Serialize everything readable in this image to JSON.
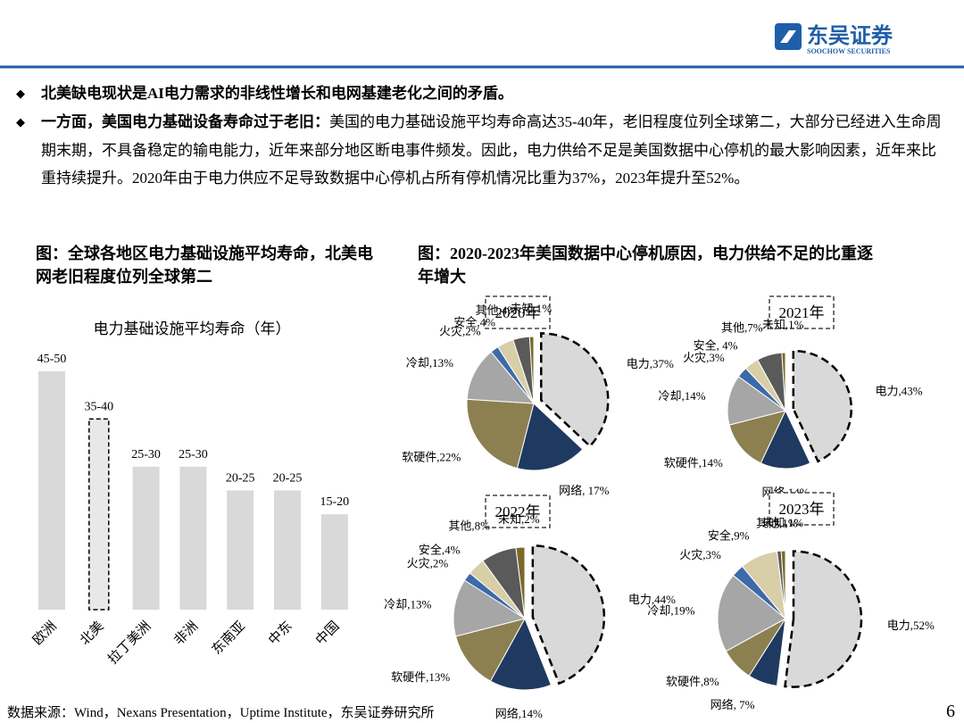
{
  "header": {
    "logo_cn": "东吴证券",
    "logo_en": "SOOCHOW SECURITIES"
  },
  "bullets": [
    {
      "bold": "北美缺电现状是AI电力需求的非线性增长和电网基建老化之间的矛盾。",
      "text": ""
    },
    {
      "bold": "一方面，美国电力基础设备寿命过于老旧：",
      "text": "美国的电力基础设施平均寿命高达35-40年，老旧程度位列全球第二，大部分已经进入生命周期末期，不具备稳定的输电能力，近年来部分地区断电事件频发。因此，电力供给不足是美国数据中心停机的最大影响因素，近年来比重持续提升。2020年由于电力供应不足导致数据中心停机占所有停机情况比重为37%，2023年提升至52%。"
    }
  ],
  "footer": {
    "source": "数据来源：Wind，Nexans Presentation，Uptime Institute，东吴证券研究所",
    "page": "6"
  },
  "chart_data": [
    {
      "type": "bar",
      "title": "图：全球各地区电力基础设施平均寿命，北美电网老旧程度位列全球第二",
      "subtitle": "电力基础设施平均寿命（年）",
      "categories": [
        "欧洲",
        "北美",
        "拉丁美洲",
        "非洲",
        "东南亚",
        "中东",
        "中国"
      ],
      "values": [
        50,
        40,
        30,
        30,
        25,
        25,
        20
      ],
      "value_labels": [
        "45-50",
        "35-40",
        "25-30",
        "25-30",
        "20-25",
        "20-25",
        "15-20"
      ],
      "color": "#d9d9d9",
      "highlight_index": 1,
      "ylim": [
        0,
        50
      ]
    },
    {
      "type": "pie",
      "title": "图：2020-2023年美国数据中心停机原因，电力供给不足的比重逐年增大",
      "pies": [
        {
          "title": "2020年",
          "categories": [
            "电力,37%",
            "网络, 17%",
            "软硬件,22%",
            "冷却,13%",
            "火灾,2%",
            "安全,4%",
            "其他,4%",
            "未知,1%"
          ],
          "values": [
            37,
            17,
            22,
            13,
            2,
            4,
            4,
            1
          ]
        },
        {
          "title": "2021年",
          "categories": [
            "电力,43%",
            "网络,14%",
            "软硬件,14%",
            "冷却,14%",
            "火灾,3%",
            "安全, 4%",
            "其他,7%",
            "未知,1%"
          ],
          "values": [
            43,
            14,
            14,
            14,
            3,
            4,
            7,
            1
          ]
        },
        {
          "title": "2022年",
          "categories": [
            "电力,44%",
            "网络,14%",
            "软硬件,13%",
            "冷却,13%",
            "火灾,2%",
            "安全,4%",
            "其他,8%",
            "未知,2%"
          ],
          "values": [
            44,
            14,
            13,
            13,
            2,
            4,
            8,
            2
          ]
        },
        {
          "title": "2023年",
          "categories": [
            "电力,52%",
            "网络, 7%",
            "软硬件,8%",
            "冷却,19%",
            "火灾,3%",
            "安全,9%",
            "其他,1%",
            "未知,1%"
          ],
          "values": [
            52,
            7,
            8,
            19,
            3,
            9,
            1,
            1
          ]
        }
      ],
      "colors": [
        "#d9d9d9",
        "#1f3a60",
        "#8c8050",
        "#a6a6a6",
        "#3d6aa8",
        "#d8cfa8",
        "#5a5a5a",
        "#7a6a2a"
      ],
      "explode_index": 0
    }
  ]
}
